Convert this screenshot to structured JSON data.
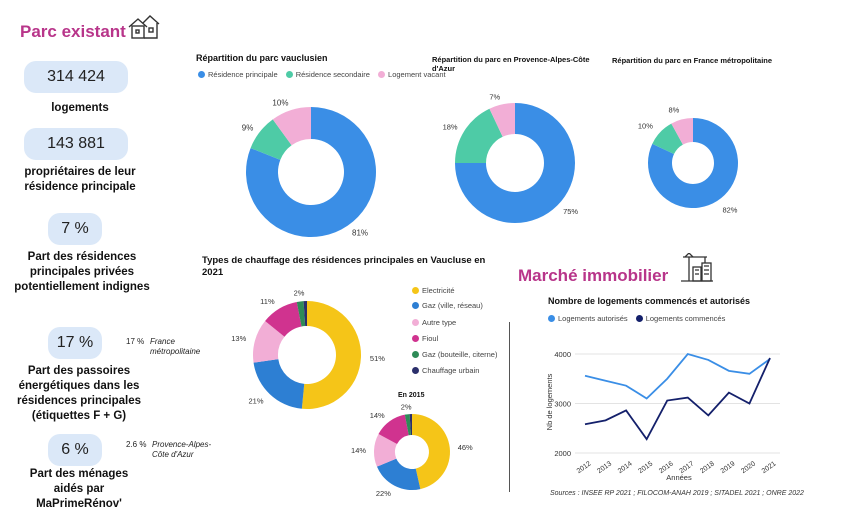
{
  "header": {
    "parc_title": "Parc existant",
    "marche_title": "Marché immobilier",
    "house_icon": "houses-icon",
    "building_icon": "buildings-crane-icon"
  },
  "kpis": [
    {
      "value": "314 424",
      "label": "logements"
    },
    {
      "value": "143 881",
      "label": "propriétaires de leur résidence principale"
    },
    {
      "value": "7 %",
      "label": "Part des résidences principales privées potentiellement indignes"
    },
    {
      "value": "17 %",
      "label": "Part des passoires énergétiques dans les résidences principales (étiquettes F + G)",
      "compare_value": "17 %",
      "compare_label": "France métropolitaine"
    },
    {
      "value": "6 %",
      "label": "Part des ménages aidés par MaPrimeRénov'",
      "compare_value": "2.6 %",
      "compare_label": "Provence-Alpes-Côte d'Azur"
    }
  ],
  "sources": "Sources : INSEE RP 2021 ; FILOCOM-ANAH 2019 ; SITADEL 2021 ; ONRE 2022",
  "chart_data": [
    {
      "type": "pie",
      "title": "Répartition du parc vauclusien",
      "legend": [
        "Résidence principale",
        "Résidence secondaire",
        "Logement vacant"
      ],
      "labels": [
        "Résidence principale",
        "Résidence secondaire",
        "Logement vacant"
      ],
      "values": [
        81,
        9,
        10
      ],
      "value_labels": [
        "81%",
        "9%",
        "10%"
      ],
      "colors": [
        "#3a8ee6",
        "#4ecba6",
        "#f2aed6"
      ]
    },
    {
      "type": "pie",
      "title": "Répartition du parc en Provence-Alpes-Côte d'Azur",
      "labels": [
        "Résidence principale",
        "Résidence secondaire",
        "Logement vacant"
      ],
      "values": [
        75,
        18,
        7
      ],
      "value_labels": [
        "75%",
        "18%",
        "7%"
      ],
      "colors": [
        "#3a8ee6",
        "#4ecba6",
        "#f2aed6"
      ]
    },
    {
      "type": "pie",
      "title": "Répartition du parc en France métropolitaine",
      "labels": [
        "Résidence principale",
        "Résidence secondaire",
        "Logement vacant"
      ],
      "values": [
        82,
        10,
        8
      ],
      "value_labels": [
        "82%",
        "10%",
        "8%"
      ],
      "colors": [
        "#3a8ee6",
        "#4ecba6",
        "#f2aed6"
      ]
    },
    {
      "type": "pie",
      "title": "Types de chauffage des résidences principales en Vaucluse en 2021",
      "legend": [
        "Electricité",
        "Gaz (ville, réseau)",
        "Autre type",
        "Fioul",
        "Gaz (bouteille, citerne)",
        "Chauffage urbain"
      ],
      "labels": [
        "Electricité",
        "Gaz (ville, réseau)",
        "Autre type",
        "Fioul",
        "Gaz (bouteille, citerne)",
        "Chauffage urbain"
      ],
      "values": [
        51,
        21,
        13,
        11,
        2,
        1
      ],
      "value_labels": [
        "51%",
        "21%",
        "13%",
        "11%",
        "2%",
        ""
      ],
      "colors": [
        "#f5c518",
        "#2d7fd3",
        "#f2aed6",
        "#d0338f",
        "#2e8b57",
        "#2b2f6b"
      ]
    },
    {
      "type": "pie",
      "title": "En 2015",
      "labels": [
        "Electricité",
        "Gaz (ville, réseau)",
        "Autre type",
        "Fioul",
        "Gaz (bouteille, citerne)",
        "Chauffage urbain"
      ],
      "values": [
        46,
        22,
        14,
        14,
        2,
        1
      ],
      "value_labels": [
        "46%",
        "22%",
        "14%",
        "14%",
        "2%",
        ""
      ],
      "colors": [
        "#f5c518",
        "#2d7fd3",
        "#f2aed6",
        "#d0338f",
        "#2e8b57",
        "#2b2f6b"
      ]
    },
    {
      "type": "line",
      "title": "Nombre de logements commencés et autorisés",
      "xlabel": "Années",
      "ylabel": "Nb de logements",
      "x": [
        "2012",
        "2013",
        "2014",
        "2015",
        "2016",
        "2017",
        "2018",
        "2019",
        "2020",
        "2021"
      ],
      "ylim": [
        2000,
        4000
      ],
      "yticks": [
        2000,
        3000,
        4000
      ],
      "series": [
        {
          "name": "Logements autorisés",
          "color": "#3a8ee6",
          "values": [
            3560,
            3460,
            3360,
            3100,
            3500,
            4000,
            3880,
            3660,
            3600,
            3900
          ]
        },
        {
          "name": "Logements commencés",
          "color": "#14206b",
          "values": [
            2580,
            2660,
            2860,
            2280,
            3060,
            3120,
            2760,
            3220,
            3000,
            3920
          ]
        }
      ]
    }
  ]
}
